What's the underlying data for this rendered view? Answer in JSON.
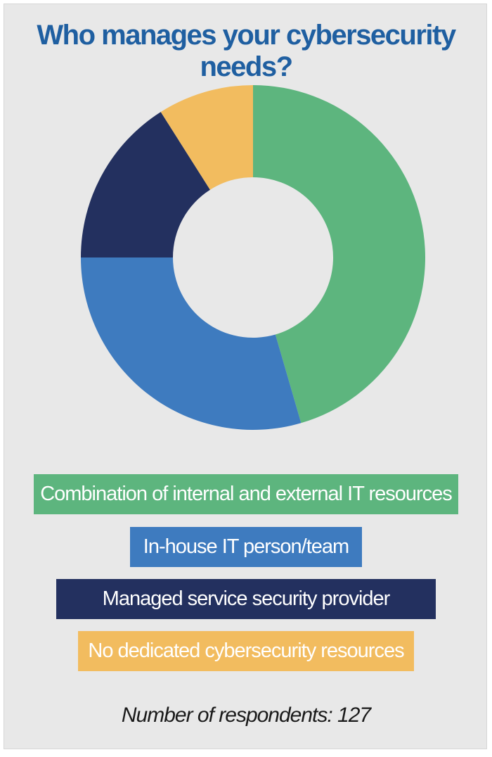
{
  "chart_data": {
    "type": "pie",
    "title": "Who manages your cybersecurity needs?",
    "categories": [
      "Combination of internal and external IT resources",
      "In-house IT person/team",
      "Managed service security provider",
      "No dedicated cybersecurity resources"
    ],
    "values": [
      45.5,
      29.5,
      16,
      9
    ],
    "colors": [
      "#5db57e",
      "#3e7bbf",
      "#23305f",
      "#f2bc5f"
    ],
    "legend_position": "bottom",
    "note": "Number of respondents: 127"
  }
}
